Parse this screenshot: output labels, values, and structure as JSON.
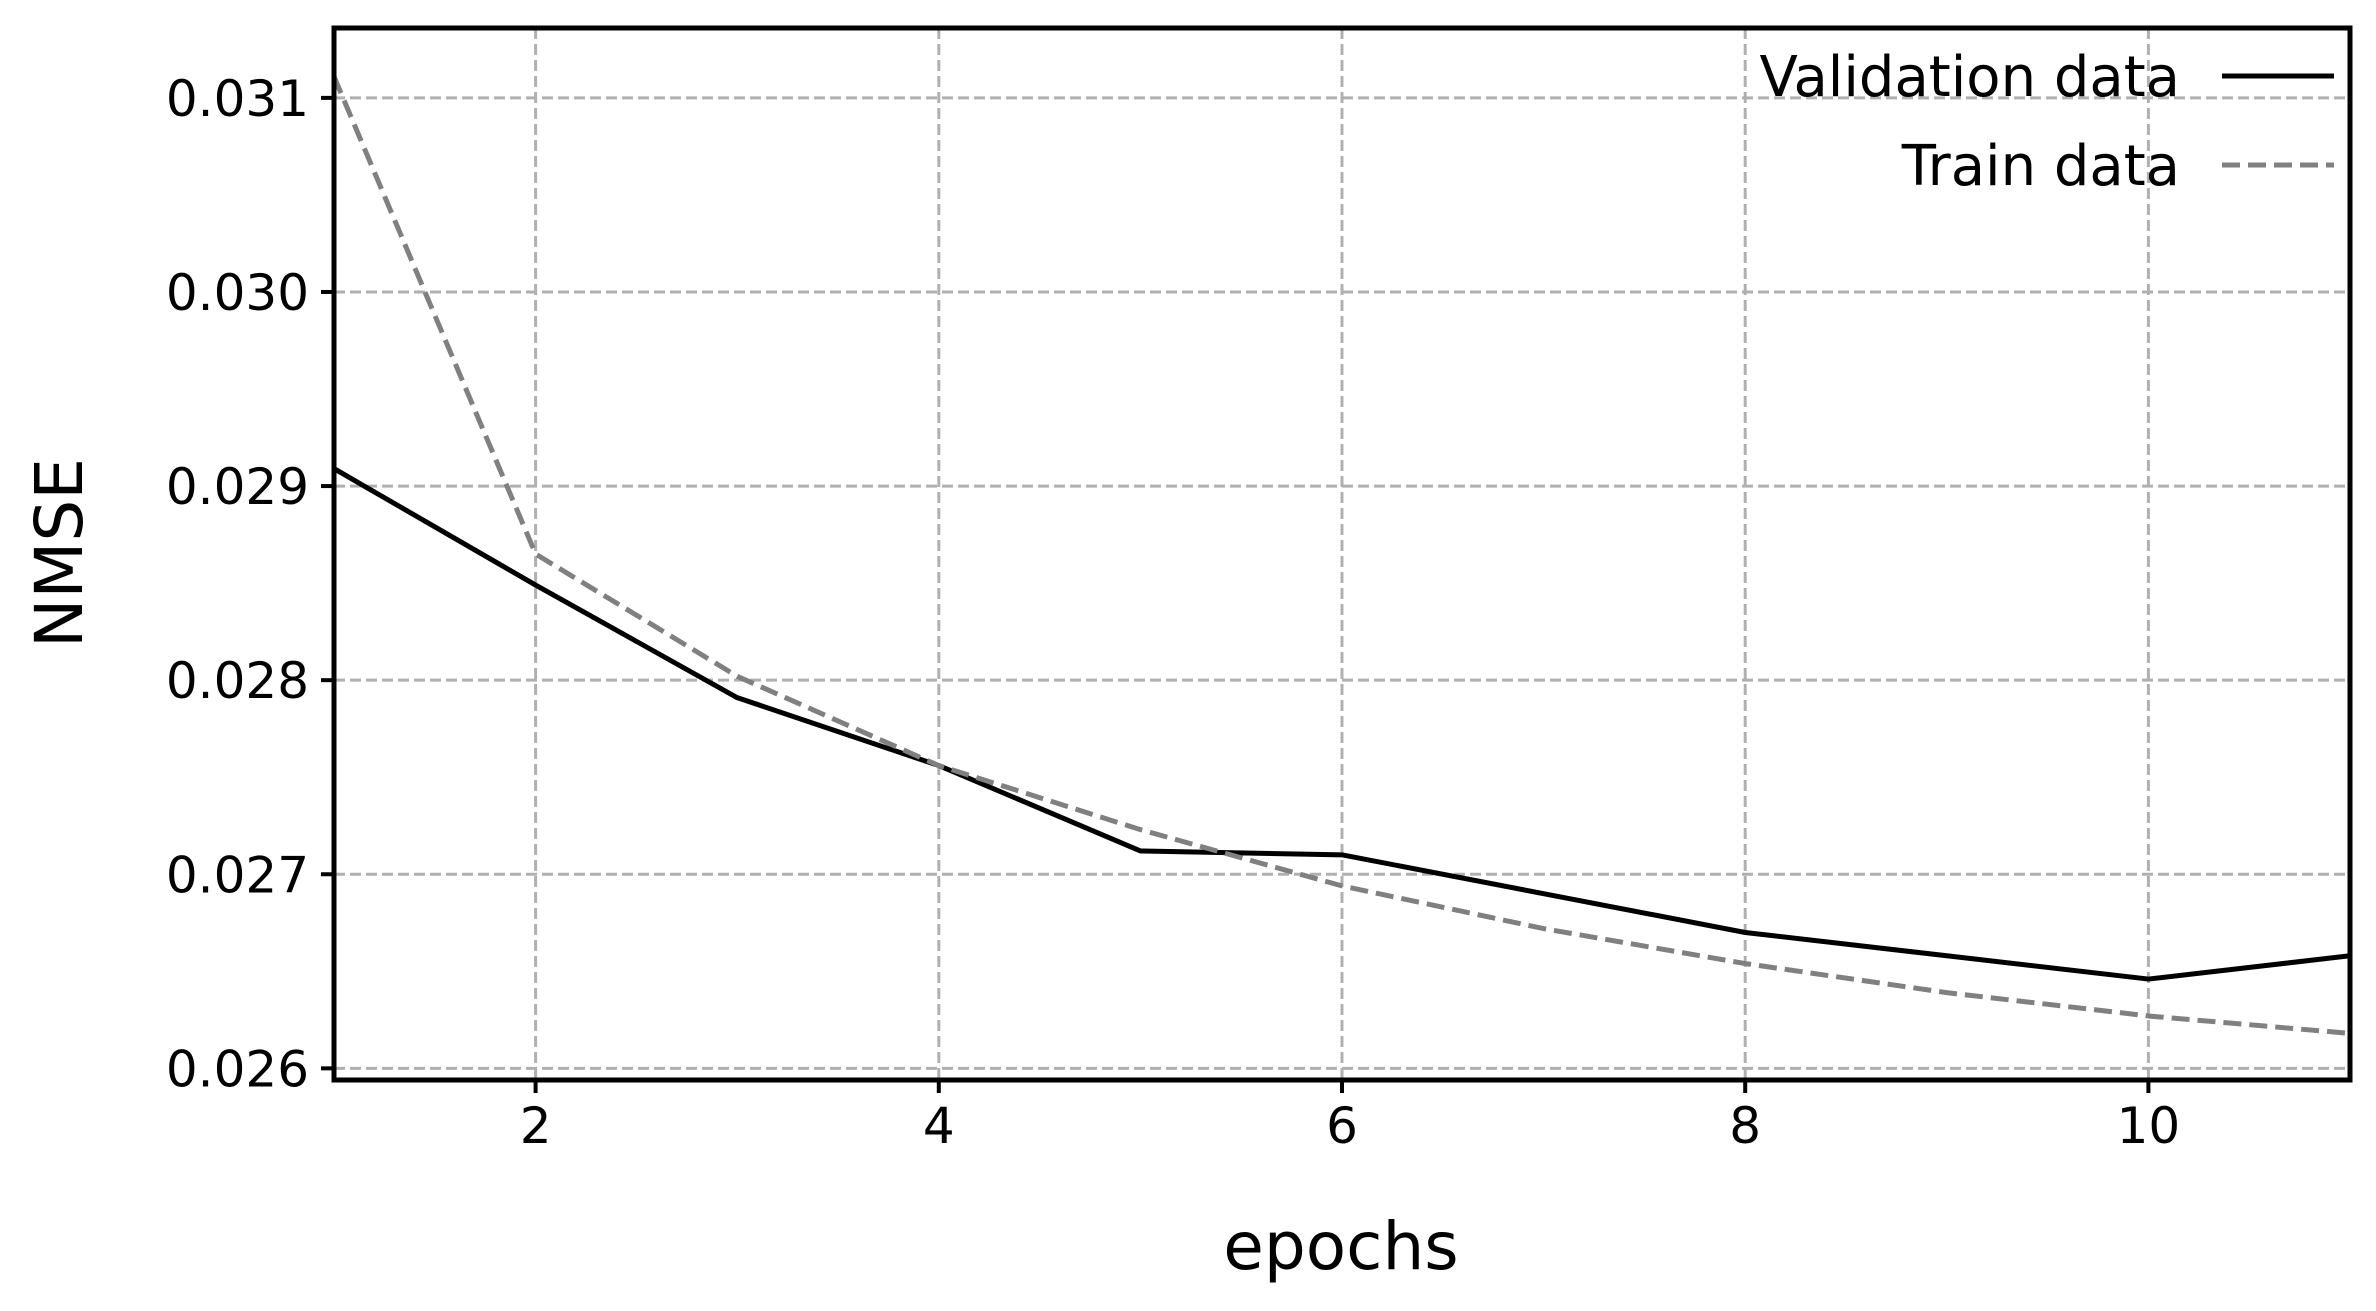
{
  "chart_data": {
    "type": "line",
    "title": "",
    "xlabel": "epochs",
    "ylabel": "NMSE",
    "x": [
      1,
      2,
      3,
      4,
      5,
      6,
      7,
      8,
      9,
      10,
      11
    ],
    "xlim": [
      1,
      11
    ],
    "ylim": [
      0.02594,
      0.03136
    ],
    "xticks": [
      2,
      4,
      6,
      8,
      10
    ],
    "xtick_labels": [
      "2",
      "4",
      "6",
      "8",
      "10"
    ],
    "yticks": [
      0.026,
      0.027,
      0.028,
      0.029,
      0.03,
      0.031
    ],
    "ytick_labels": [
      "0.026",
      "0.027",
      "0.028",
      "0.029",
      "0.030",
      "0.031"
    ],
    "grid": true,
    "legend_position": "upper right",
    "series": [
      {
        "name": "Validation data",
        "style": "solid",
        "color": "#000000",
        "values": [
          0.02909,
          0.02849,
          0.02791,
          0.02756,
          0.02712,
          0.0271,
          0.0269,
          0.0267,
          0.02658,
          0.02646,
          0.02658
        ]
      },
      {
        "name": "Train data",
        "style": "dashed",
        "color": "#808080",
        "values": [
          0.03111,
          0.02865,
          0.02802,
          0.02756,
          0.02723,
          0.02694,
          0.02672,
          0.02654,
          0.02639,
          0.02627,
          0.02618
        ]
      }
    ]
  },
  "colors": {
    "grid": "#b0b0b0",
    "axes": "#000000",
    "background": "#ffffff"
  }
}
